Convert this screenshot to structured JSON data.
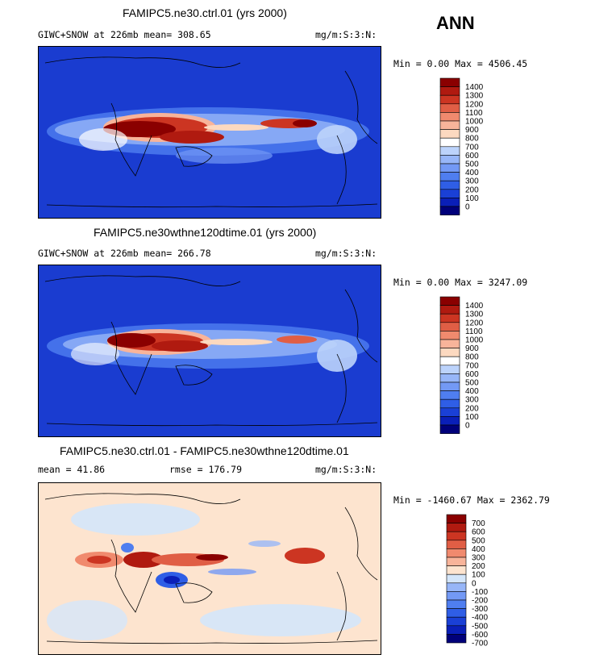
{
  "season_label": "ANN",
  "palettes": {
    "abs": [
      "#00007a",
      "#0a1fb8",
      "#1a40d6",
      "#2f5ee6",
      "#4f7ef0",
      "#7399f5",
      "#97b6f8",
      "#bcd3fb",
      "#ffffff",
      "#fcd9c0",
      "#f8b49a",
      "#f08a6e",
      "#e05e45",
      "#cc3522",
      "#b01a10",
      "#8a0000"
    ],
    "diff": [
      "#00007a",
      "#0a1fb8",
      "#1a40d6",
      "#2f5ee6",
      "#4f7ef0",
      "#7399f5",
      "#97b6f8",
      "#d4e6fa",
      "#fde4cf",
      "#f8b49a",
      "#f08a6e",
      "#e05e45",
      "#cc3522",
      "#b01a10",
      "#8a0000"
    ]
  },
  "panels": [
    {
      "title": "FAMIPC5.ne30.ctrl.01 (yrs 2000)",
      "left_text": "GIWC+SNOW at 226mb   mean= 308.65",
      "units": "mg/m:S:3:N:",
      "minmax": "Min =   0.00 Max = 4506.45",
      "colorbar_labels": [
        "1400",
        "1300",
        "1200",
        "1100",
        "1000",
        "900",
        "800",
        "700",
        "600",
        "500",
        "400",
        "300",
        "200",
        "100",
        "0"
      ],
      "palette": "abs"
    },
    {
      "title": "FAMIPC5.ne30wthne120dtime.01 (yrs 2000)",
      "left_text": "GIWC+SNOW at 226mb   mean= 266.78",
      "units": "mg/m:S:3:N:",
      "minmax": "Min =   0.00 Max = 3247.09",
      "colorbar_labels": [
        "1400",
        "1300",
        "1200",
        "1100",
        "1000",
        "900",
        "800",
        "700",
        "600",
        "500",
        "400",
        "300",
        "200",
        "100",
        "0"
      ],
      "palette": "abs"
    },
    {
      "title": "FAMIPC5.ne30.ctrl.01 - FAMIPC5.ne30wthne120dtime.01",
      "left_text": "mean =  41.86",
      "mid_text": "rmse = 176.79",
      "units": "mg/m:S:3:N:",
      "minmax": "Min = -1460.67 Max = 2362.79",
      "colorbar_labels": [
        "700",
        "600",
        "500",
        "400",
        "300",
        "200",
        "100",
        "0",
        "-100",
        "-200",
        "-300",
        "-400",
        "-500",
        "-600",
        "-700"
      ],
      "palette": "diff"
    }
  ],
  "chart_data": [
    {
      "type": "heatmap",
      "title": "FAMIPC5.ne30.ctrl.01 (yrs 2000)",
      "variable": "GIWC+SNOW at 226mb",
      "units": "mg/m:S:3:N:",
      "mean": 308.65,
      "min": 0.0,
      "max": 4506.45,
      "contour_levels": [
        0,
        100,
        200,
        300,
        400,
        500,
        600,
        700,
        800,
        900,
        1000,
        1100,
        1200,
        1300,
        1400
      ]
    },
    {
      "type": "heatmap",
      "title": "FAMIPC5.ne30wthne120dtime.01 (yrs 2000)",
      "variable": "GIWC+SNOW at 226mb",
      "units": "mg/m:S:3:N:",
      "mean": 266.78,
      "min": 0.0,
      "max": 3247.09,
      "contour_levels": [
        0,
        100,
        200,
        300,
        400,
        500,
        600,
        700,
        800,
        900,
        1000,
        1100,
        1200,
        1300,
        1400
      ]
    },
    {
      "type": "heatmap",
      "title": "FAMIPC5.ne30.ctrl.01 - FAMIPC5.ne30wthne120dtime.01",
      "units": "mg/m:S:3:N:",
      "mean": 41.86,
      "rmse": 176.79,
      "min": -1460.67,
      "max": 2362.79,
      "contour_levels": [
        -700,
        -600,
        -500,
        -400,
        -300,
        -200,
        -100,
        0,
        100,
        200,
        300,
        400,
        500,
        600,
        700
      ]
    }
  ]
}
